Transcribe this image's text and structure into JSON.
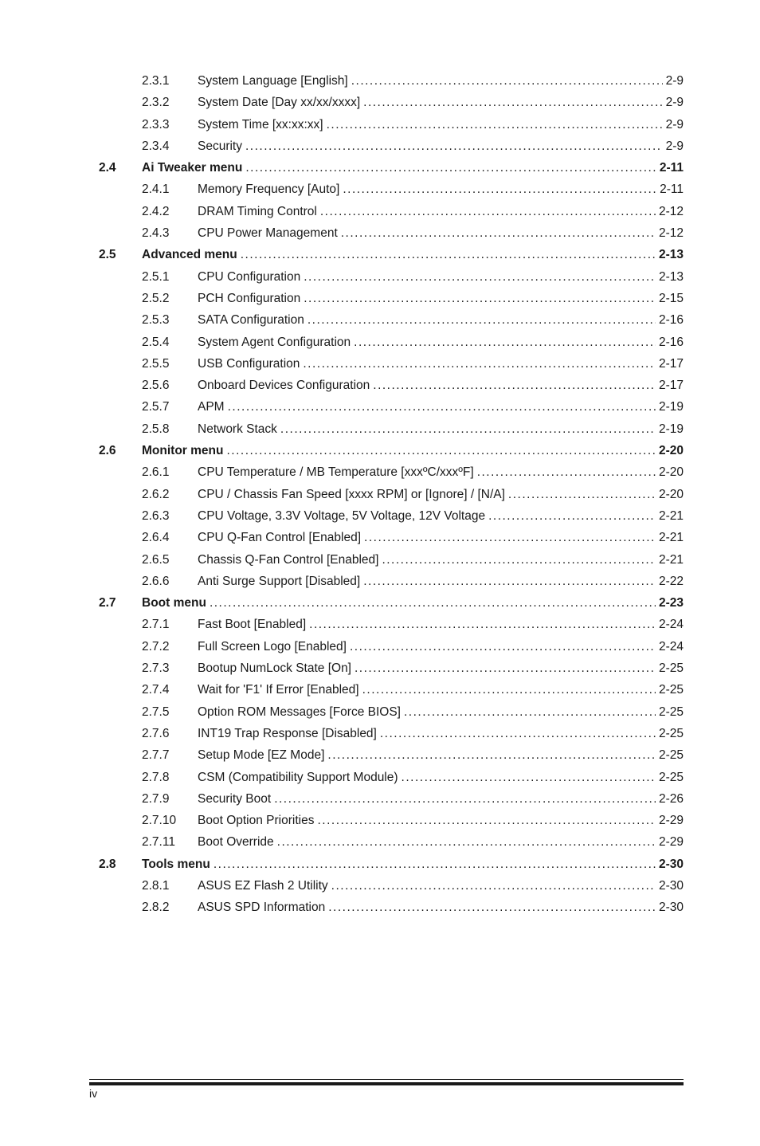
{
  "page_number": "iv",
  "toc": [
    {
      "level": "sub",
      "num": "2.3.1",
      "title": "System Language [English]",
      "page": "2-9"
    },
    {
      "level": "sub",
      "num": "2.3.2",
      "title": "System Date [Day xx/xx/xxxx]",
      "page": "2-9"
    },
    {
      "level": "sub",
      "num": "2.3.3",
      "title": "System Time [xx:xx:xx]",
      "page": "2-9"
    },
    {
      "level": "sub",
      "num": "2.3.4",
      "title": "Security",
      "page": "2-9"
    },
    {
      "level": "section",
      "num": "2.4",
      "title": "Ai Tweaker menu",
      "page": "2-11"
    },
    {
      "level": "sub",
      "num": "2.4.1",
      "title": "Memory Frequency [Auto]",
      "page": "2-11"
    },
    {
      "level": "sub",
      "num": "2.4.2",
      "title": "DRAM Timing Control",
      "page": "2-12"
    },
    {
      "level": "sub",
      "num": "2.4.3",
      "title": "CPU Power Management",
      "page": "2-12"
    },
    {
      "level": "section",
      "num": "2.5",
      "title": "Advanced menu",
      "page": "2-13"
    },
    {
      "level": "sub",
      "num": "2.5.1",
      "title": "CPU Configuration",
      "page": "2-13"
    },
    {
      "level": "sub",
      "num": "2.5.2",
      "title": "PCH Configuration",
      "page": "2-15"
    },
    {
      "level": "sub",
      "num": "2.5.3",
      "title": "SATA Configuration",
      "page": "2-16"
    },
    {
      "level": "sub",
      "num": "2.5.4",
      "title": "System Agent Configuration",
      "page": "2-16"
    },
    {
      "level": "sub",
      "num": "2.5.5",
      "title": "USB Configuration",
      "page": "2-17"
    },
    {
      "level": "sub",
      "num": "2.5.6",
      "title": "Onboard Devices Configuration",
      "page": "2-17"
    },
    {
      "level": "sub",
      "num": "2.5.7",
      "title": "APM",
      "page": "2-19"
    },
    {
      "level": "sub",
      "num": "2.5.8",
      "title": "Network Stack",
      "page": "2-19"
    },
    {
      "level": "section",
      "num": "2.6",
      "title": "Monitor menu",
      "page": "2-20"
    },
    {
      "level": "sub",
      "num": "2.6.1",
      "title": "CPU Temperature / MB Temperature [xxxºC/xxxºF]",
      "page": "2-20"
    },
    {
      "level": "sub",
      "num": "2.6.2",
      "title": "CPU / Chassis Fan Speed [xxxx RPM] or [Ignore] / [N/A]",
      "page": "2-20"
    },
    {
      "level": "sub",
      "num": "2.6.3",
      "title": "CPU Voltage, 3.3V Voltage, 5V Voltage, 12V Voltage",
      "page": "2-21"
    },
    {
      "level": "sub",
      "num": "2.6.4",
      "title": "CPU Q-Fan Control [Enabled]",
      "page": "2-21"
    },
    {
      "level": "sub",
      "num": "2.6.5",
      "title": "Chassis Q-Fan Control [Enabled]",
      "page": "2-21"
    },
    {
      "level": "sub",
      "num": "2.6.6",
      "title": "Anti Surge Support [Disabled]",
      "page": "2-22"
    },
    {
      "level": "section",
      "num": "2.7",
      "title": "Boot menu",
      "page": "2-23"
    },
    {
      "level": "sub",
      "num": "2.7.1",
      "title": "Fast Boot [Enabled]",
      "page": "2-24"
    },
    {
      "level": "sub",
      "num": "2.7.2",
      "title": "Full Screen Logo [Enabled]",
      "page": "2-24"
    },
    {
      "level": "sub",
      "num": "2.7.3",
      "title": "Bootup NumLock State [On]",
      "page": "2-25"
    },
    {
      "level": "sub",
      "num": "2.7.4",
      "title": "Wait for 'F1' If Error [Enabled]",
      "page": "2-25"
    },
    {
      "level": "sub",
      "num": "2.7.5",
      "title": "Option ROM Messages [Force BIOS]",
      "page": "2-25"
    },
    {
      "level": "sub",
      "num": "2.7.6",
      "title": "INT19 Trap Response [Disabled]",
      "page": "2-25"
    },
    {
      "level": "sub",
      "num": "2.7.7",
      "title": "Setup Mode [EZ Mode]",
      "page": "2-25"
    },
    {
      "level": "sub",
      "num": "2.7.8",
      "title": "CSM (Compatibility Support Module)",
      "page": "2-25"
    },
    {
      "level": "sub",
      "num": "2.7.9",
      "title": "Security Boot",
      "page": "2-26"
    },
    {
      "level": "sub",
      "num": "2.7.10",
      "title": "Boot Option Priorities",
      "page": "2-29"
    },
    {
      "level": "sub",
      "num": "2.7.11",
      "title": "Boot Override",
      "page": "2-29"
    },
    {
      "level": "section",
      "num": "2.8",
      "title": "Tools menu",
      "page": "2-30"
    },
    {
      "level": "sub",
      "num": "2.8.1",
      "title": "ASUS EZ Flash 2 Utility",
      "page": "2-30"
    },
    {
      "level": "sub",
      "num": "2.8.2",
      "title": "ASUS SPD Information",
      "page": "2-30"
    }
  ]
}
